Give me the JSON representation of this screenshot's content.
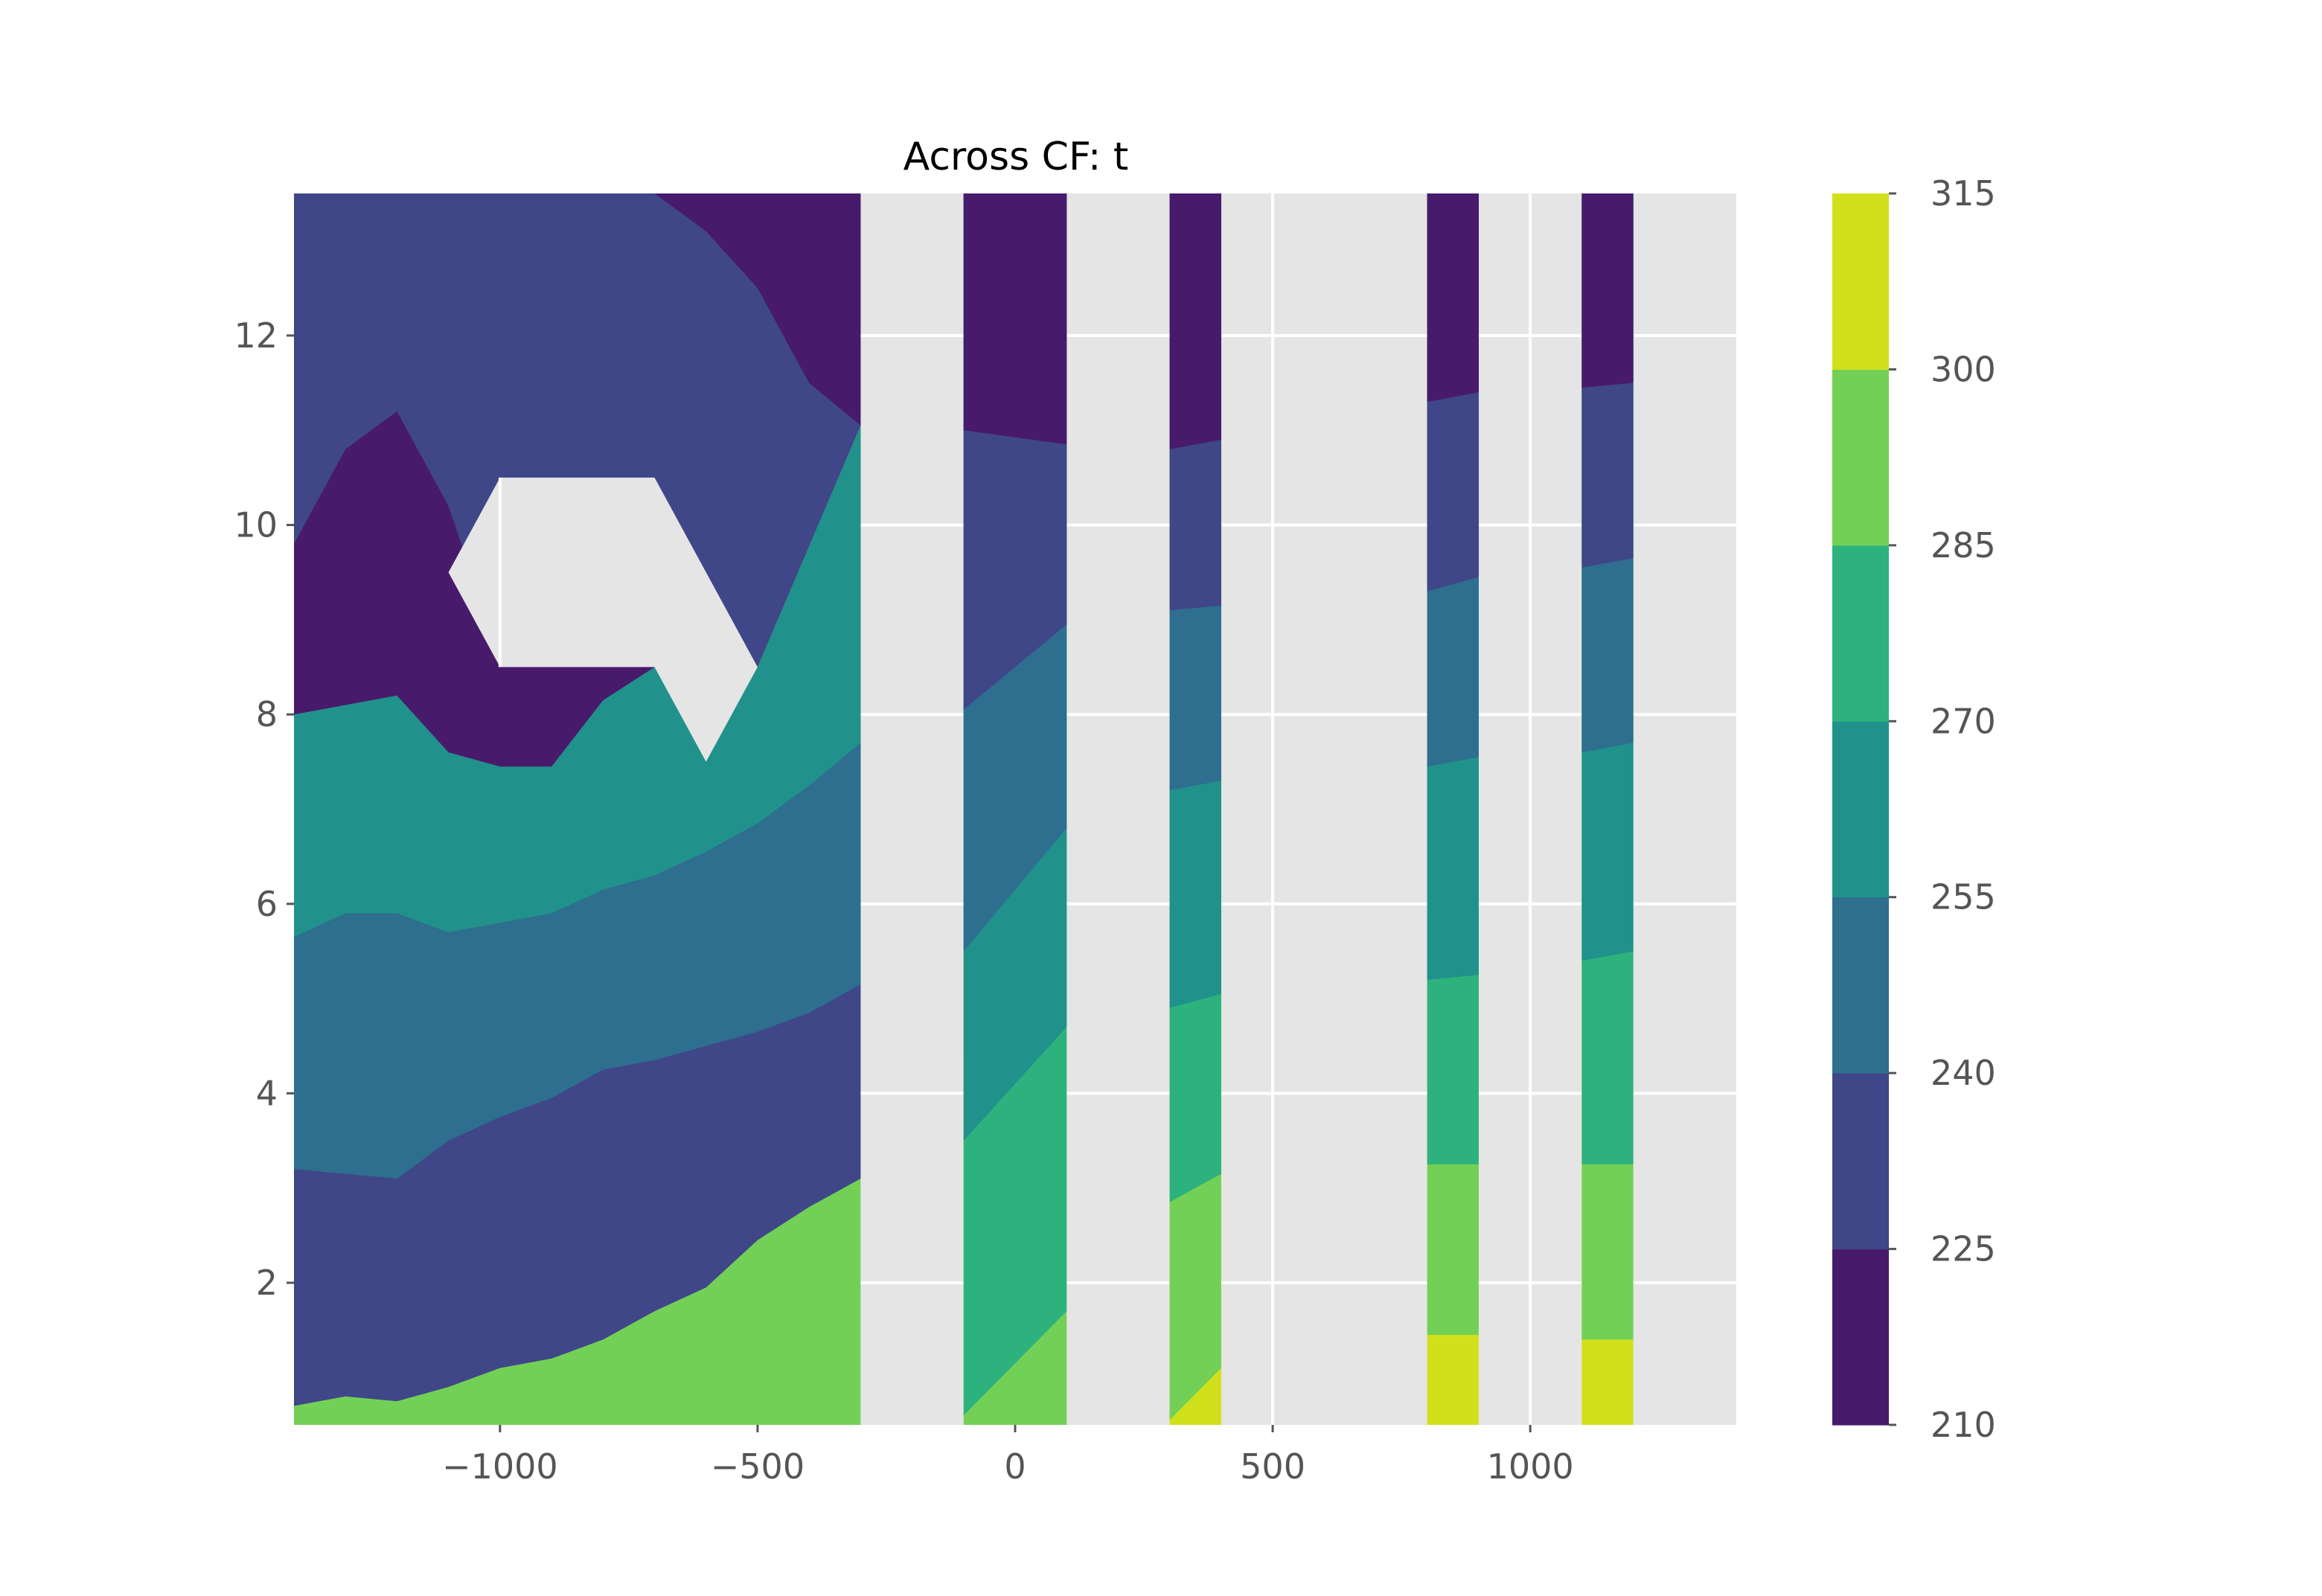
{
  "chart_data": {
    "type": "contour",
    "title": "Across CF: t",
    "xlabel": "",
    "ylabel": "",
    "xlim": [
      -1400,
      1400
    ],
    "ylim": [
      0.5,
      13.5
    ],
    "xticks": [
      -1000,
      -500,
      0,
      500,
      1000
    ],
    "xtick_labels": [
      "−1000",
      "−500",
      "0",
      "500",
      "1000"
    ],
    "yticks": [
      2,
      4,
      6,
      8,
      10,
      12
    ],
    "ytick_labels": [
      "2",
      "4",
      "6",
      "8",
      "10",
      "12"
    ],
    "grid": true,
    "background": "#e5e5e5",
    "levels": [
      210,
      225,
      240,
      255,
      270,
      285,
      300,
      315
    ],
    "colorbar_labels": [
      "210",
      "225",
      "240",
      "255",
      "270",
      "285",
      "300",
      "315"
    ],
    "level_colors": [
      "#481a6c",
      "#3f4788",
      "#2e6e8e",
      "#21918c",
      "#2db27d",
      "#73d056",
      "#d0e11c"
    ],
    "missing_region": [
      [
        -1100,
        9.5
      ],
      [
        -1000,
        10.5
      ],
      [
        -700,
        10.5
      ],
      [
        -500,
        8.5
      ],
      [
        -600,
        7.5
      ],
      [
        -700,
        8.5
      ],
      [
        -1000,
        8.5
      ]
    ],
    "left_block": {
      "x_range": [
        -1400,
        -300
      ],
      "boundaries": [
        {
          "level": 225,
          "points": [
            [
              -1400,
              0.7
            ],
            [
              -1300,
              0.8
            ],
            [
              -1200,
              0.75
            ],
            [
              -1100,
              0.9
            ],
            [
              -1000,
              1.1
            ],
            [
              -900,
              1.2
            ],
            [
              -800,
              1.4
            ],
            [
              -700,
              1.7
            ],
            [
              -600,
              1.95
            ],
            [
              -500,
              2.45
            ],
            [
              -400,
              2.8
            ],
            [
              -300,
              3.1
            ]
          ]
        },
        {
          "level": 240,
          "points": [
            [
              -1400,
              3.2
            ],
            [
              -1300,
              3.15
            ],
            [
              -1200,
              3.1
            ],
            [
              -1100,
              3.5
            ],
            [
              -1000,
              3.75
            ],
            [
              -900,
              3.95
            ],
            [
              -800,
              4.25
            ],
            [
              -700,
              4.35
            ],
            [
              -600,
              4.5
            ],
            [
              -500,
              4.65
            ],
            [
              -400,
              4.85
            ],
            [
              -300,
              5.15
            ]
          ]
        },
        {
          "level": 255,
          "points": [
            [
              -1400,
              5.65
            ],
            [
              -1300,
              5.9
            ],
            [
              -1200,
              5.9
            ],
            [
              -1100,
              5.7
            ],
            [
              -1000,
              5.8
            ],
            [
              -900,
              5.9
            ],
            [
              -800,
              6.15
            ],
            [
              -700,
              6.3
            ],
            [
              -600,
              6.55
            ],
            [
              -500,
              6.85
            ],
            [
              -400,
              7.25
            ],
            [
              -300,
              7.7
            ]
          ]
        },
        {
          "level": 270,
          "points": [
            [
              -1400,
              8.0
            ],
            [
              -1300,
              8.1
            ],
            [
              -1200,
              8.2
            ],
            [
              -1100,
              7.6
            ],
            [
              -1000,
              7.45
            ],
            [
              -900,
              7.45
            ],
            [
              -800,
              8.15
            ],
            [
              -700,
              8.5
            ]
          ]
        },
        {
          "level": 285,
          "points": [
            [
              -1400,
              9.8
            ],
            [
              -1300,
              10.8
            ],
            [
              -1200,
              11.2
            ],
            [
              -1100,
              10.2
            ],
            [
              -1000,
              9.4
            ],
            [
              -900,
              9.2
            ],
            [
              -800,
              9.0
            ],
            [
              -700,
              8.9
            ],
            [
              -600,
              8.7
            ],
            [
              -500,
              8.5
            ]
          ]
        },
        {
          "level": 300,
          "points": [
            [
              -700,
              13.5
            ],
            [
              -600,
              13.1
            ],
            [
              -500,
              12.5
            ],
            [
              -400,
              11.5
            ],
            [
              -300,
              11.05
            ]
          ]
        }
      ]
    },
    "columns": [
      {
        "x_range": [
          -100,
          100
        ],
        "boundaries": [
          {
            "level": 225,
            "points": [
              [
                -100,
                0.6
              ],
              [
                100,
                1.7
              ]
            ]
          },
          {
            "level": 240,
            "points": [
              [
                -100,
                3.5
              ],
              [
                100,
                4.7
              ]
            ]
          },
          {
            "level": 255,
            "points": [
              [
                -100,
                5.5
              ],
              [
                100,
                6.8
              ]
            ]
          },
          {
            "level": 270,
            "points": [
              [
                -100,
                8.05
              ],
              [
                100,
                8.95
              ]
            ]
          },
          {
            "level": 285,
            "points": [
              [
                -100,
                11.0
              ],
              [
                100,
                10.85
              ]
            ]
          }
        ]
      },
      {
        "x_range": [
          300,
          400
        ],
        "boundaries": [
          {
            "level": 225,
            "points": [
              [
                300,
                0.55
              ],
              [
                400,
                1.1
              ]
            ]
          },
          {
            "level": 240,
            "points": [
              [
                300,
                2.85
              ],
              [
                400,
                3.15
              ]
            ]
          },
          {
            "level": 255,
            "points": [
              [
                300,
                4.9
              ],
              [
                400,
                5.05
              ]
            ]
          },
          {
            "level": 270,
            "points": [
              [
                300,
                7.2
              ],
              [
                400,
                7.3
              ]
            ]
          },
          {
            "level": 285,
            "points": [
              [
                300,
                9.1
              ],
              [
                400,
                9.15
              ]
            ]
          },
          {
            "level": 300,
            "points": [
              [
                300,
                10.8
              ],
              [
                400,
                10.9
              ]
            ]
          }
        ]
      },
      {
        "x_range": [
          800,
          900
        ],
        "boundaries": [
          {
            "level": 225,
            "points": [
              [
                800,
                1.45
              ],
              [
                900,
                1.45
              ]
            ]
          },
          {
            "level": 240,
            "points": [
              [
                800,
                3.25
              ],
              [
                900,
                3.25
              ]
            ]
          },
          {
            "level": 255,
            "points": [
              [
                800,
                5.2
              ],
              [
                900,
                5.25
              ]
            ]
          },
          {
            "level": 270,
            "points": [
              [
                800,
                7.45
              ],
              [
                900,
                7.55
              ]
            ]
          },
          {
            "level": 285,
            "points": [
              [
                800,
                9.3
              ],
              [
                900,
                9.45
              ]
            ]
          },
          {
            "level": 300,
            "points": [
              [
                800,
                11.3
              ],
              [
                900,
                11.4
              ]
            ]
          }
        ]
      },
      {
        "x_range": [
          1100,
          1200
        ],
        "boundaries": [
          {
            "level": 225,
            "points": [
              [
                1100,
                1.4
              ],
              [
                1200,
                1.4
              ]
            ]
          },
          {
            "level": 240,
            "points": [
              [
                1100,
                3.25
              ],
              [
                1200,
                3.25
              ]
            ]
          },
          {
            "level": 255,
            "points": [
              [
                1100,
                5.4
              ],
              [
                1200,
                5.5
              ]
            ]
          },
          {
            "level": 270,
            "points": [
              [
                1100,
                7.6
              ],
              [
                1200,
                7.7
              ]
            ]
          },
          {
            "level": 285,
            "points": [
              [
                1100,
                9.55
              ],
              [
                1200,
                9.65
              ]
            ]
          },
          {
            "level": 300,
            "points": [
              [
                1100,
                11.45
              ],
              [
                1200,
                11.5
              ]
            ]
          }
        ]
      }
    ]
  }
}
